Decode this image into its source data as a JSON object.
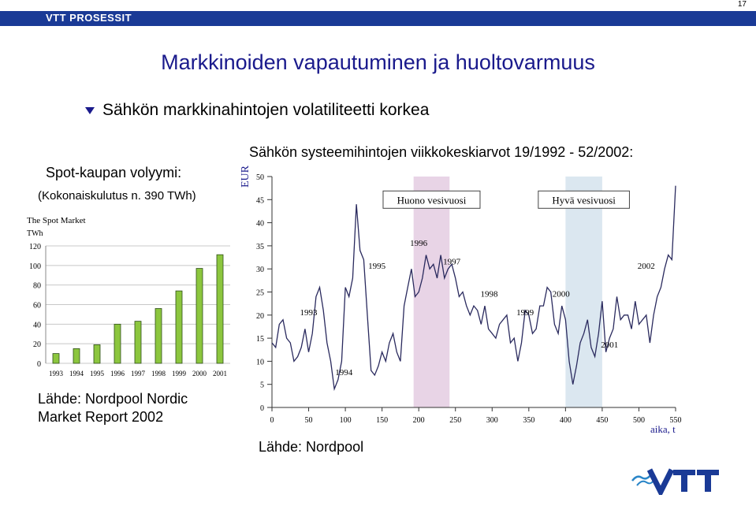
{
  "header": {
    "brand": "VTT PROSESSIT",
    "page_number": "17"
  },
  "title": "Markkinoiden vapautuminen ja huoltovarmuus",
  "bullet": "Sähkön markkinahintojen volatiliteetti korkea",
  "left_panel": {
    "heading": "Spot-kaupan volyymi:",
    "subheading": "(Kokonaiskulutus n. 390 TWh)",
    "source_line1": "Lähde: Nordpool Nordic",
    "source_line2": "Market Report 2002"
  },
  "right_panel": {
    "heading": "Sähkön systeemihintojen viikkokeskiarvot 19/1992 - 52/2002:",
    "source": "Lähde: Nordpool"
  },
  "logo_text": "VTT",
  "colors": {
    "brand_bar": "#1a3a96",
    "title": "#1a1a8c",
    "bar_fill": "#8cc63e",
    "wet_band": "#e8d4e6",
    "dry_band": "#dbe7f0",
    "line": "#2a2a5e"
  },
  "chart_data": [
    {
      "type": "bar",
      "title": "The Spot Market",
      "ylabel": "TWh",
      "categories": [
        "1993",
        "1994",
        "1995",
        "1996",
        "1997",
        "1998",
        "1999",
        "2000",
        "2001"
      ],
      "values": [
        10,
        15,
        19,
        40,
        43,
        56,
        74,
        97,
        111
      ],
      "extra_bars": [
        {
          "category_index": 0,
          "value": 10
        },
        {
          "category_index": 1,
          "value": 15
        },
        {
          "category_index": 2,
          "value": 19
        },
        {
          "category_index": 3,
          "value": 40
        },
        {
          "category_index": 4,
          "value": 43
        },
        {
          "category_index": 5,
          "value": 56
        },
        {
          "category_index": 6,
          "value": 74
        },
        {
          "category_index": 7,
          "value": 97
        },
        {
          "category_index": 8,
          "value": 111
        }
      ],
      "ylim": [
        0,
        120
      ],
      "yticks": [
        "0",
        "20",
        "40",
        "60",
        "80",
        "100",
        "120"
      ],
      "grid": true
    },
    {
      "type": "line",
      "ylabel": "EUR",
      "xlabel": "aika, t",
      "xlim": [
        0,
        550
      ],
      "ylim": [
        0,
        50
      ],
      "xticks": [
        "0",
        "50",
        "100",
        "150",
        "200",
        "250",
        "300",
        "350",
        "400",
        "450",
        "500",
        "550"
      ],
      "yticks": [
        "0",
        "5",
        "10",
        "15",
        "20",
        "25",
        "30",
        "35",
        "40",
        "45",
        "50"
      ],
      "bands": [
        {
          "label": "Huono vesivuosi",
          "x_range": [
            193,
            242
          ]
        },
        {
          "label": "Hyvä vesivuosi",
          "x_range": [
            400,
            450
          ]
        }
      ],
      "year_labels": [
        {
          "text": "1993",
          "x": 50,
          "y": 20
        },
        {
          "text": "1994",
          "x": 98,
          "y": 7
        },
        {
          "text": "1995",
          "x": 143,
          "y": 30
        },
        {
          "text": "1996",
          "x": 200,
          "y": 35
        },
        {
          "text": "1997",
          "x": 245,
          "y": 31
        },
        {
          "text": "1998",
          "x": 296,
          "y": 24
        },
        {
          "text": "1999",
          "x": 345,
          "y": 20
        },
        {
          "text": "2000",
          "x": 394,
          "y": 24
        },
        {
          "text": "2001",
          "x": 460,
          "y": 13
        },
        {
          "text": "2002",
          "x": 510,
          "y": 30
        }
      ],
      "series": [
        {
          "x": [
            0,
            5,
            10,
            15,
            20,
            25,
            30,
            35,
            40,
            45,
            50,
            55,
            60,
            65,
            70,
            75,
            80,
            85,
            90,
            95,
            100,
            105,
            110,
            115,
            120,
            125,
            130,
            135,
            140,
            145,
            150,
            155,
            160,
            165,
            170,
            175,
            180,
            185,
            190,
            195,
            200,
            205,
            210,
            215,
            220,
            225,
            230,
            235,
            240,
            245,
            250,
            255,
            260,
            265,
            270,
            275,
            280,
            285,
            290,
            295,
            300,
            305,
            310,
            315,
            320,
            325,
            330,
            335,
            340,
            345,
            350,
            355,
            360,
            365,
            370,
            375,
            380,
            385,
            390,
            395,
            400,
            405,
            410,
            415,
            420,
            425,
            430,
            435,
            440,
            445,
            450,
            455,
            460,
            465,
            470,
            475,
            480,
            485,
            490,
            495,
            500,
            505,
            510,
            515,
            520,
            525,
            530,
            535,
            540,
            545,
            550
          ],
          "values": [
            14,
            13,
            18,
            19,
            15,
            14,
            10,
            11,
            13,
            17,
            12,
            16,
            24,
            26,
            21,
            14,
            10,
            4,
            6,
            10,
            26,
            24,
            28,
            44,
            34,
            32,
            20,
            8,
            7,
            9,
            12,
            10,
            14,
            16,
            12,
            10,
            22,
            26,
            30,
            24,
            25,
            28,
            33,
            30,
            31,
            28,
            33,
            28,
            30,
            31,
            28,
            24,
            25,
            22,
            20,
            22,
            21,
            18,
            22,
            17,
            16,
            15,
            18,
            19,
            20,
            14,
            15,
            10,
            14,
            21,
            20,
            16,
            17,
            22,
            22,
            26,
            25,
            18,
            16,
            22,
            19,
            10,
            5,
            9,
            14,
            16,
            19,
            13,
            11,
            16,
            23,
            12,
            15,
            17,
            24,
            19,
            20,
            20,
            17,
            23,
            18,
            19,
            20,
            14,
            20,
            24,
            26,
            30,
            33,
            32,
            48
          ]
        }
      ]
    }
  ]
}
